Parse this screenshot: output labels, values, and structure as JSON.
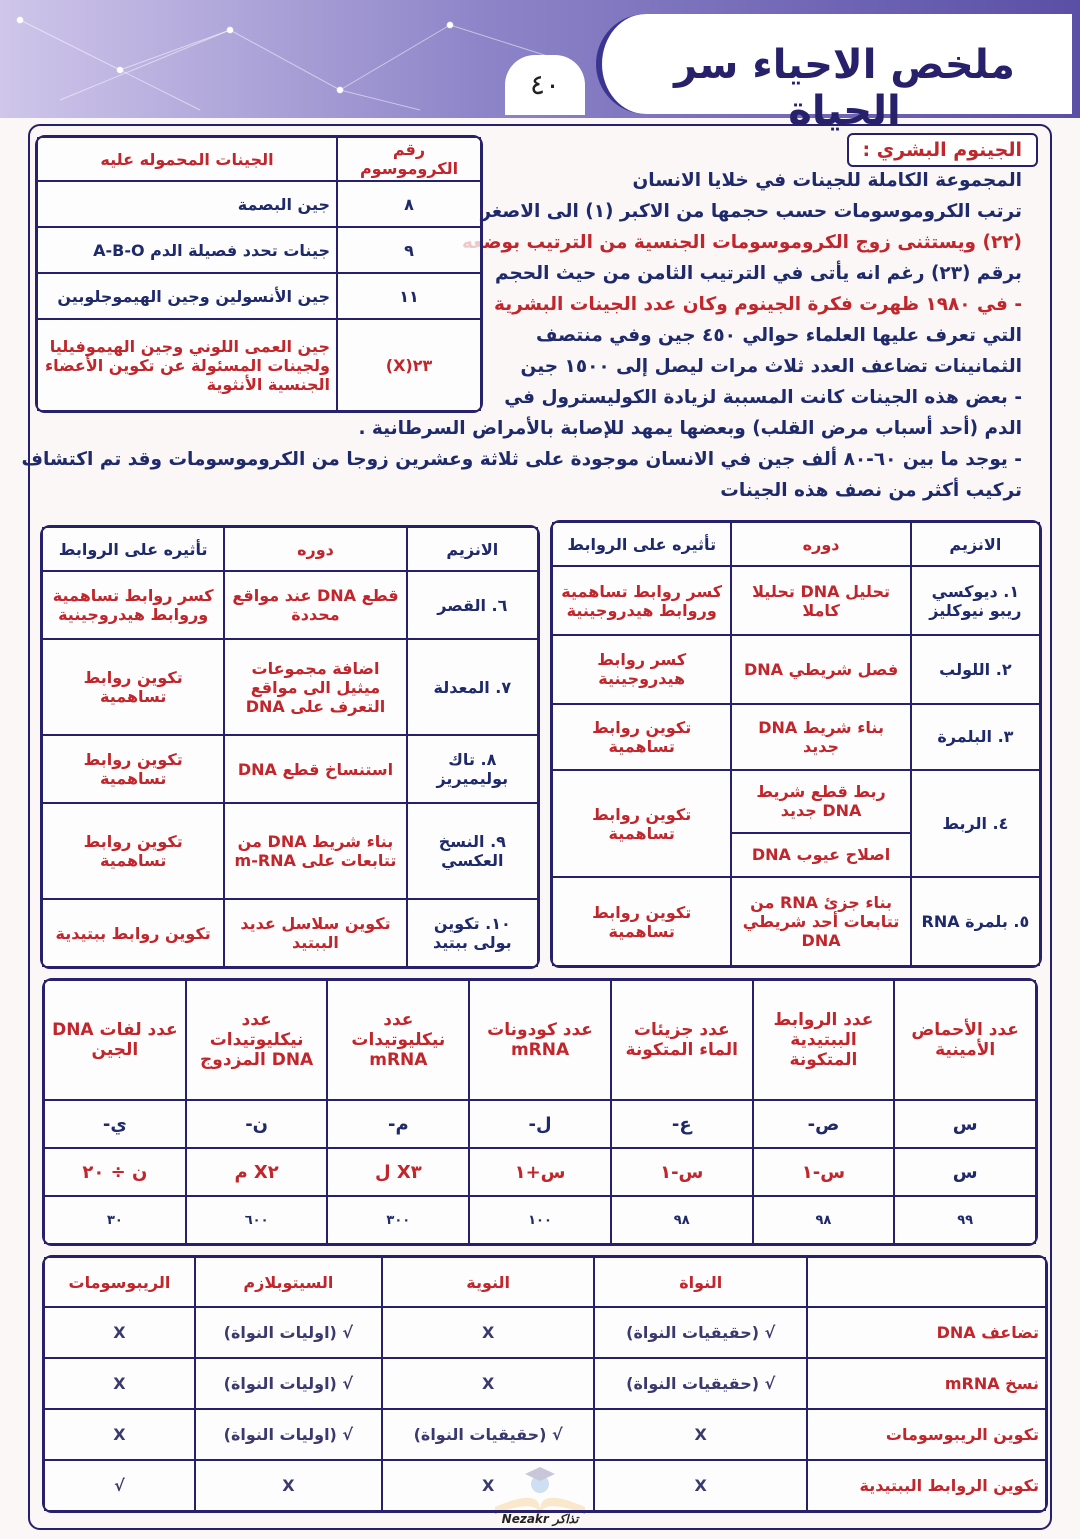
{
  "header": {
    "title": "ملخص الاحياء سر الحياة",
    "page": "٤٠"
  },
  "genome": {
    "heading": "الجينوم البشري :",
    "lines": [
      {
        "text": "المجموعة الكاملة للجينات في خلايا الانسان",
        "color": "#1f2a6b"
      },
      {
        "text": "ترتب الكروموسومات حسب حجمها من الاكبر (١) الى الاصغر",
        "color": "#1f2a6b"
      },
      {
        "text": "(٢٢) ويستثنى زوج الكروموسومات الجنسية من الترتيب بوضعه",
        "color": "#c0262c"
      },
      {
        "text": "برقم (٢٣) رغم انه يأتى في الترتيب الثامن من حيث الحجم",
        "color": "#1f2a6b"
      },
      {
        "text": "- في ١٩٨٠ ظهرت فكرة الجينوم وكان عدد الجينات البشرية",
        "color": "#c0262c"
      },
      {
        "text": "التي تعرف عليها العلماء حوالي ٤٥٠ جين وفي منتصف",
        "color": "#1f2a6b"
      },
      {
        "text": "الثمانينات تضاعف العدد ثلاث مرات ليصل إلى ١٥٠٠ جين",
        "color": "#1f2a6b"
      },
      {
        "text": "- بعض هذه الجينات كانت المسببة لزيادة الكوليسترول في",
        "color": "#1f2a6b"
      },
      {
        "text": "الدم (أحد أسباب مرض القلب) وبعضها يمهد للإصابة بالأمراض السرطانية .",
        "color": "#1f2a6b"
      },
      {
        "text": "- يوجد ما بين ٦٠-٨٠ ألف جين في الانسان موجودة على ثلاثة وعشرين زوجا من الكروموسومات وقد تم اكتشاف",
        "color": "#1f2a6b"
      },
      {
        "text": "تركيب أكثر من نصف هذه الجينات",
        "color": "#1f2a6b"
      }
    ]
  },
  "chromosome_table": {
    "headers": [
      "رقم الكروموسوم",
      "الجينات المحموله عليه"
    ],
    "rows": [
      [
        "٨",
        "جين البصمة"
      ],
      [
        "٩",
        "جينات تحدد فصيلة الدم A-B-O"
      ],
      [
        "١١",
        "جين الأنسولين وجين الهيموجلوبين"
      ],
      [
        "٢٣(X)",
        "جين العمى اللوني وجين الهيموفيليا ولجينات المسئولة عن تكوين الأعضاء الجنسية الأنثوية"
      ]
    ]
  },
  "enzymes_right": {
    "headers": [
      "الانزيم",
      "دوره",
      "تأثيره على الروابط"
    ],
    "rows": [
      [
        "١. ديوكسي ريبو نيوكليز",
        "تحليل DNA تحليلا كاملا",
        "كسر روابط تساهمية وروابط هيدروجينية"
      ],
      [
        "٢. اللولب",
        "فصل شريطي DNA",
        "كسر روابط هيدروجينية"
      ],
      [
        "٣. البلمرة",
        "بناء شريط DNA جديد",
        "تكوين روابط تساهمية"
      ],
      [
        "٤. الربط",
        [
          "ربط قطع شريط DNA جديد",
          "اصلاح عيوب DNA"
        ],
        "تكوين روابط تساهمية"
      ],
      [
        "٥. بلمرة RNA",
        "بناء جزئ RNA من تتابعات أحد شريطي DNA",
        "تكوين روابط تساهمية"
      ]
    ]
  },
  "enzymes_left": {
    "headers": [
      "الانزيم",
      "دوره",
      "تأثيره على الروابط"
    ],
    "rows": [
      [
        "٦. القصر",
        "قطع DNA عند مواقع محددة",
        "كسر روابط تساهمية وروابط هيدروجينية"
      ],
      [
        "٧. المعدلة",
        "اضافة مجموعات ميثيل الى مواقع التعرف على DNA",
        "تكوين روابط تساهمية"
      ],
      [
        "٨. تاك بوليميريز",
        "استنساخ قطع DNA",
        "تكوين روابط تساهمية"
      ],
      [
        "٩. النسخ العكسي",
        "بناء شريط DNA من تتابعات على m-RNA",
        "تكوين روابط تساهمية"
      ],
      [
        "١٠. تكوين بولى ببتيد",
        "تكوين سلاسل عديد الببتيد",
        "تكوين روابط ببتيدية"
      ]
    ]
  },
  "counts_table": {
    "headers": [
      "عدد الأحماض الأمينية",
      "عدد الروابط الببتيدية المتكونة",
      "عدد جزيئات الماء المتكونة",
      "عدد كودونات mRNA",
      "عدد نيكليوتيدات mRNA",
      "عدد نيكليوتيدات DNA المزدوج",
      "عدد لفات DNA الجين"
    ],
    "rows": [
      [
        "س",
        "ص-",
        "ع-",
        "ل-",
        "م-",
        "ن-",
        "ي-"
      ],
      [
        "س",
        "س-١",
        "س-١",
        "س+١",
        "X٣ ل",
        "X٢ م",
        "ن ÷ ٢٠"
      ],
      [
        "٩٩",
        "٩٨",
        "٩٨",
        "١٠٠",
        "٣٠٠",
        "٦٠٠",
        "٣٠"
      ]
    ]
  },
  "location_table": {
    "headers": [
      "النواة",
      "النوية",
      "السيتوبلازم",
      "الريبوسومات"
    ],
    "rows": [
      {
        "label": "تضاعف DNA",
        "cells": [
          "√ (حقيقيات النواة)",
          "X",
          "√ (اوليات النواة)",
          "X"
        ]
      },
      {
        "label": "نسخ mRNA",
        "cells": [
          "√ (حقيقيات النواة)",
          "X",
          "√ (اوليات النواة)",
          "X"
        ]
      },
      {
        "label": "تكوين الريبوسومات",
        "cells": [
          "X",
          "√ (حقيقيات النواة)",
          "√ (اوليات النواة)",
          "X"
        ]
      },
      {
        "label": "تكوين الروابط الببتيدية",
        "cells": [
          "X",
          "X",
          "X",
          "√"
        ]
      }
    ]
  },
  "logo": "Nezakr تذاكر"
}
